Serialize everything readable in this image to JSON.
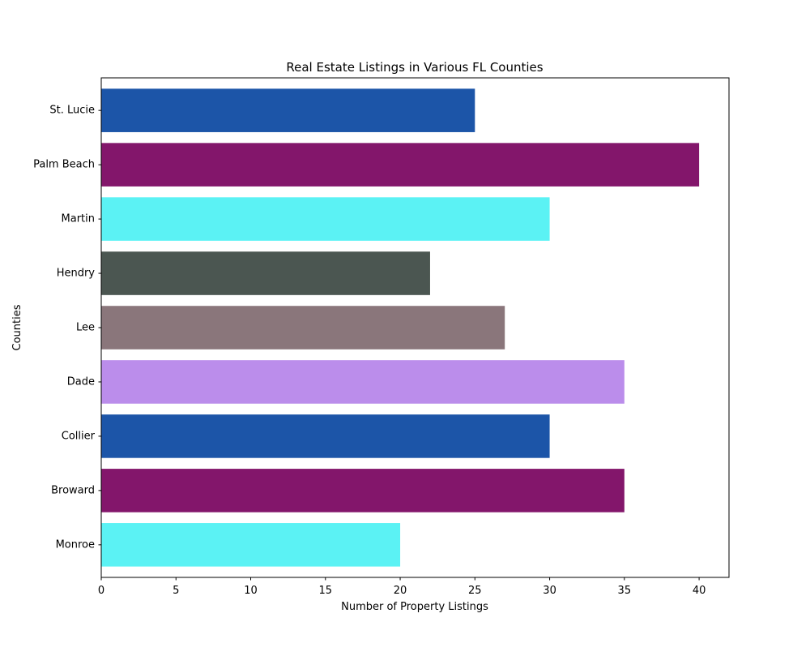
{
  "chart_data": {
    "type": "bar",
    "orientation": "horizontal",
    "title": "Real Estate Listings in Various FL Counties",
    "xlabel": "Number of Property Listings",
    "ylabel": "Counties",
    "categories": [
      "Monroe",
      "Broward",
      "Collier",
      "Dade",
      "Lee",
      "Hendry",
      "Martin",
      "Palm Beach",
      "St. Lucie"
    ],
    "values": [
      20,
      35,
      30,
      35,
      27,
      22,
      30,
      40,
      25
    ],
    "colors": [
      "#5bf2f4",
      "#83166b",
      "#1c55a8",
      "#bb8deb",
      "#8a767b",
      "#4b5651",
      "#5bf2f4",
      "#83166b",
      "#1c55a8"
    ],
    "xlim": [
      0,
      42
    ],
    "xticks": [
      0,
      5,
      10,
      15,
      20,
      25,
      30,
      35,
      40
    ],
    "grid": false,
    "legend": "none"
  }
}
